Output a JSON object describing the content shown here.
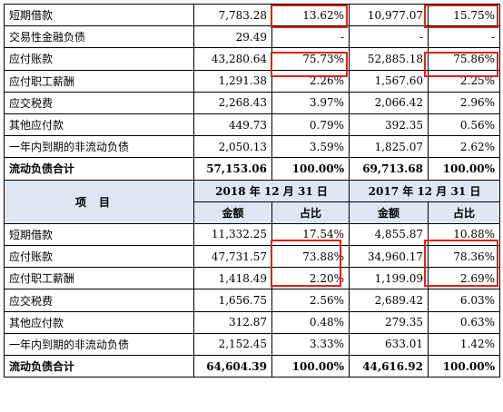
{
  "top_rows": [
    {
      "label": "短期借款",
      "v1": "7,783.28",
      "p1": "13.62%",
      "v2": "10,977.07",
      "p2": "15.75%"
    },
    {
      "label": "交易性金融负债",
      "v1": "29.49",
      "p1": "-",
      "v2": "-",
      "p2": "-"
    },
    {
      "label": "应付账款",
      "v1": "43,280.64",
      "p1": "75.73%",
      "v2": "52,885.18",
      "p2": "75.86%"
    },
    {
      "label": "应付职工薪酬",
      "v1": "1,291.38",
      "p1": "2.26%",
      "v2": "1,567.60",
      "p2": "2.25%"
    },
    {
      "label": "应交税费",
      "v1": "2,268.43",
      "p1": "3.97%",
      "v2": "2,066.42",
      "p2": "2.96%"
    },
    {
      "label": "其他应付款",
      "v1": "449.73",
      "p1": "0.79%",
      "v2": "392.35",
      "p2": "0.56%"
    },
    {
      "label": "一年内到期的非流动负债",
      "v1": "2,050.13",
      "p1": "3.59%",
      "v2": "1,825.07",
      "p2": "2.62%"
    },
    {
      "label": "流动负债合计",
      "v1": "57,153.06",
      "p1": "100.00%",
      "v2": "69,713.68",
      "p2": "100.00%"
    }
  ],
  "header": {
    "item": "项目",
    "year1": "2018 年 12 月 31 日",
    "year2": "2017 年 12 月 31 日",
    "amount": "金额",
    "ratio": "占比"
  },
  "bottom_rows": [
    {
      "label": "短期借款",
      "v1": "11,332.25",
      "p1": "17.54%",
      "v2": "4,855.87",
      "p2": "10.88%"
    },
    {
      "label": "应付账款",
      "v1": "47,731.57",
      "p1": "73.88%",
      "v2": "34,960.17",
      "p2": "78.36%"
    },
    {
      "label": "应付职工薪酬",
      "v1": "1,418.49",
      "p1": "2.20%",
      "v2": "1,199.09",
      "p2": "2.69%"
    },
    {
      "label": "应交税费",
      "v1": "1,656.75",
      "p1": "2.56%",
      "v2": "2,689.42",
      "p2": "6.03%"
    },
    {
      "label": "其他应付款",
      "v1": "312.87",
      "p1": "0.48%",
      "v2": "279.35",
      "p2": "0.63%"
    },
    {
      "label": "一年内到期的非流动负债",
      "v1": "2,152.45",
      "p1": "3.33%",
      "v2": "633.01",
      "p2": "1.42%"
    },
    {
      "label": "流动负债合计",
      "v1": "64,604.39",
      "p1": "100.00%",
      "v2": "44,616.92",
      "p2": "100.00%"
    }
  ],
  "colors": {
    "highlight_border": "#e0201b",
    "header_background": "#dde6f2"
  }
}
